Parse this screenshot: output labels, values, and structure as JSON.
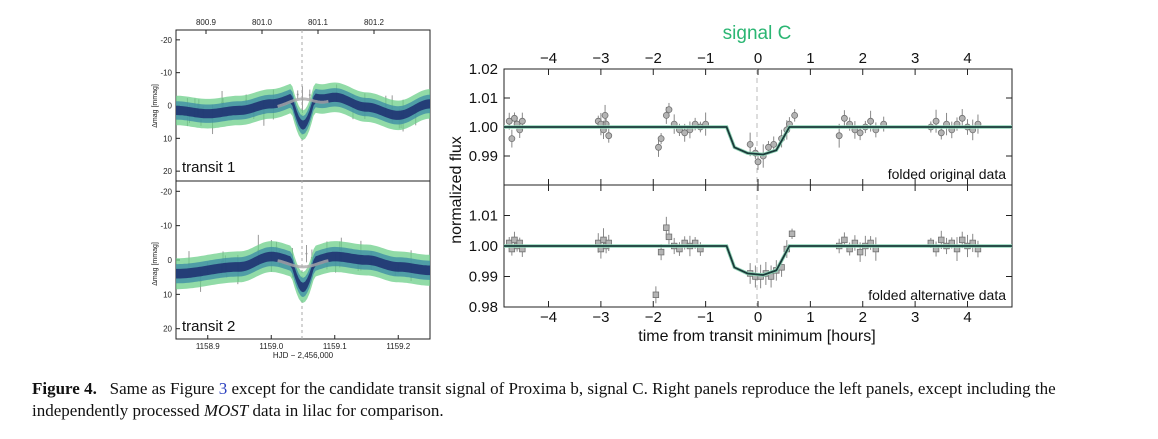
{
  "chart_data": [
    {
      "type": "scatter",
      "panel": "left-transit-1",
      "title": "",
      "label": "transit 1",
      "ylabel": "Δmag [mmag]",
      "top_xticks": [
        "800.9",
        "801.0",
        "801.1",
        "801.2"
      ],
      "yticks": [
        "-20",
        "-10",
        "0",
        "10",
        "20"
      ],
      "ylim": [
        -23,
        23
      ],
      "xlim": [
        1158.85,
        1159.25
      ],
      "transit_center": 1159.05,
      "dip_depth": 9,
      "baseline": [
        [
          1158.85,
          1.5
        ],
        [
          1158.9,
          2.5
        ],
        [
          1158.95,
          1.5
        ],
        [
          1159.0,
          -0.5
        ],
        [
          1159.05,
          -3
        ],
        [
          1159.08,
          -2
        ],
        [
          1159.1,
          -2.5
        ],
        [
          1159.15,
          0.5
        ],
        [
          1159.2,
          3
        ],
        [
          1159.25,
          -0.5
        ]
      ]
    },
    {
      "type": "scatter",
      "panel": "left-transit-2",
      "label": "transit 2",
      "ylabel": "Δmag [mmag]",
      "yticks": [
        "-20",
        "-10",
        "0",
        "10",
        "20"
      ],
      "xticks": [
        "1158.9",
        "1159.0",
        "1159.1",
        "1159.2"
      ],
      "xlabel": "HJD − 2,456,000",
      "ylim": [
        -23,
        23
      ],
      "xlim": [
        1158.85,
        1159.25
      ],
      "transit_center": 1159.05,
      "dip_depth": 7,
      "baseline": [
        [
          1158.85,
          4
        ],
        [
          1158.95,
          2
        ],
        [
          1159.0,
          -1
        ],
        [
          1159.05,
          1
        ],
        [
          1159.1,
          -1
        ],
        [
          1159.15,
          0
        ],
        [
          1159.2,
          2
        ],
        [
          1159.25,
          3
        ]
      ]
    },
    {
      "type": "scatter",
      "panel": "right-original",
      "title": "signal C",
      "annotation": "folded original data",
      "ylabel": "normalized flux",
      "xlim": [
        -4.85,
        4.85
      ],
      "ylim": [
        0.98,
        1.02
      ],
      "yticks": [
        "0.99",
        "1.00",
        "1.01",
        "1.02"
      ],
      "top_xticks": [
        "−4",
        "−3",
        "−2",
        "−1",
        "0",
        "1",
        "2",
        "3",
        "4"
      ],
      "marker": "circle",
      "model": [
        [
          -4.85,
          1.0
        ],
        [
          -0.6,
          1.0
        ],
        [
          -0.45,
          0.993
        ],
        [
          -0.2,
          0.991
        ],
        [
          0.1,
          0.9905
        ],
        [
          0.35,
          0.992
        ],
        [
          0.6,
          1.0
        ],
        [
          4.85,
          1.0
        ]
      ],
      "points": [
        [
          -4.75,
          1.002
        ],
        [
          -4.7,
          0.996
        ],
        [
          -4.65,
          1.003
        ],
        [
          -4.6,
          1.001
        ],
        [
          -4.55,
          0.999
        ],
        [
          -4.5,
          1.002
        ],
        [
          -3.05,
          1.002
        ],
        [
          -3.0,
          1.001
        ],
        [
          -2.95,
          0.999
        ],
        [
          -2.9,
          1.001
        ],
        [
          -2.85,
          0.997
        ],
        [
          -2.92,
          1.004
        ],
        [
          -1.9,
          0.993
        ],
        [
          -1.85,
          0.996
        ],
        [
          -1.75,
          1.004
        ],
        [
          -1.7,
          1.006
        ],
        [
          -1.6,
          1.001
        ],
        [
          -1.5,
          0.999
        ],
        [
          -1.4,
          0.998
        ],
        [
          -1.3,
          0.999
        ],
        [
          -1.2,
          1.001
        ],
        [
          -1.1,
          1.0
        ],
        [
          -1.0,
          1.001
        ],
        [
          -0.15,
          0.994
        ],
        [
          -0.05,
          0.991
        ],
        [
          0.0,
          0.988
        ],
        [
          0.1,
          0.99
        ],
        [
          0.2,
          0.993
        ],
        [
          0.3,
          0.994
        ],
        [
          0.45,
          0.996
        ],
        [
          0.55,
          0.999
        ],
        [
          0.6,
          1.001
        ],
        [
          0.7,
          1.004
        ],
        [
          1.55,
          0.997
        ],
        [
          1.65,
          1.003
        ],
        [
          1.75,
          1.001
        ],
        [
          1.85,
          0.999
        ],
        [
          1.95,
          0.998
        ],
        [
          2.05,
          1.0
        ],
        [
          2.15,
          1.002
        ],
        [
          2.25,
          0.999
        ],
        [
          2.4,
          1.001
        ],
        [
          3.3,
          1.0
        ],
        [
          3.4,
          1.002
        ],
        [
          3.5,
          0.998
        ],
        [
          3.6,
          1.001
        ],
        [
          3.7,
          0.999
        ],
        [
          3.8,
          1.001
        ],
        [
          3.9,
          1.003
        ],
        [
          4.0,
          1.0
        ],
        [
          4.1,
          0.999
        ],
        [
          4.2,
          1.001
        ]
      ]
    },
    {
      "type": "scatter",
      "panel": "right-alternative",
      "annotation": "folded alternative data",
      "xlabel": "time from transit minimum [hours]",
      "xlim": [
        -4.85,
        4.85
      ],
      "ylim": [
        0.98,
        1.02
      ],
      "yticks": [
        "0.98",
        "0.99",
        "1.00",
        "1.01"
      ],
      "xticks": [
        "−4",
        "−3",
        "−2",
        "−1",
        "0",
        "1",
        "2",
        "3",
        "4"
      ],
      "marker": "square",
      "model": [
        [
          -4.85,
          1.0
        ],
        [
          -0.6,
          1.0
        ],
        [
          -0.45,
          0.993
        ],
        [
          -0.2,
          0.991
        ],
        [
          0.1,
          0.9905
        ],
        [
          0.35,
          0.992
        ],
        [
          0.6,
          1.0
        ],
        [
          4.85,
          1.0
        ]
      ],
      "points": [
        [
          -4.75,
          1.001
        ],
        [
          -4.7,
          0.999
        ],
        [
          -4.65,
          1.002
        ],
        [
          -4.6,
          1.0
        ],
        [
          -4.55,
          1.001
        ],
        [
          -4.5,
          0.999
        ],
        [
          -3.05,
          1.001
        ],
        [
          -3.0,
          0.999
        ],
        [
          -2.95,
          1.002
        ],
        [
          -2.9,
          1.0
        ],
        [
          -2.85,
          1.001
        ],
        [
          -1.95,
          0.984
        ],
        [
          -1.85,
          0.998
        ],
        [
          -1.75,
          1.006
        ],
        [
          -1.7,
          1.003
        ],
        [
          -1.6,
          1.0
        ],
        [
          -1.5,
          0.999
        ],
        [
          -1.4,
          1.001
        ],
        [
          -1.3,
          1.0
        ],
        [
          -1.2,
          1.001
        ],
        [
          -1.1,
          0.999
        ],
        [
          -0.15,
          0.991
        ],
        [
          -0.05,
          0.99
        ],
        [
          0.05,
          0.99
        ],
        [
          0.15,
          0.991
        ],
        [
          0.25,
          0.99
        ],
        [
          0.35,
          0.992
        ],
        [
          0.45,
          0.993
        ],
        [
          0.55,
          0.999
        ],
        [
          0.65,
          1.004
        ],
        [
          1.55,
          1.0
        ],
        [
          1.65,
          1.002
        ],
        [
          1.75,
          0.999
        ],
        [
          1.85,
          1.001
        ],
        [
          1.95,
          0.998
        ],
        [
          2.05,
          1.0
        ],
        [
          2.15,
          1.001
        ],
        [
          2.25,
          0.999
        ],
        [
          3.3,
          1.001
        ],
        [
          3.4,
          0.999
        ],
        [
          3.5,
          1.002
        ],
        [
          3.6,
          1.0
        ],
        [
          3.7,
          1.001
        ],
        [
          3.8,
          0.999
        ],
        [
          3.9,
          1.002
        ],
        [
          4.0,
          1.0
        ],
        [
          4.1,
          1.001
        ],
        [
          4.2,
          0.999
        ]
      ]
    }
  ],
  "colors": {
    "signal_title": "#2bb673",
    "model_line": "#1a3a3a",
    "point_fill": "#b4b4b4",
    "point_edge": "#707070",
    "band_outer": "#6ccf8a",
    "band_inner": "#2a5c8a",
    "band_core": "#1c2d6e",
    "noise_grey": "#999999"
  },
  "caption": {
    "label": "Figure 4.",
    "part1": "Same as Figure",
    "ref": "3",
    "part2": "except for the candidate transit signal of Proxima b, signal C. Right panels reproduce the left panels, except including the independently processed",
    "most": "MOST",
    "part3": "data in lilac for comparison."
  }
}
